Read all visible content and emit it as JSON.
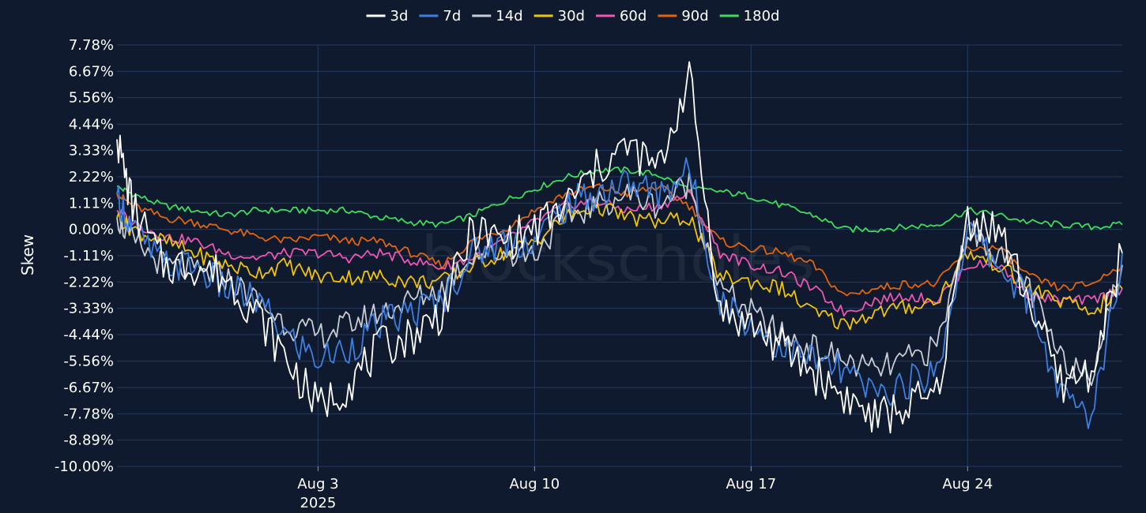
{
  "watermark": "blockscholes",
  "chart_data": {
    "type": "line",
    "title": "",
    "xlabel": "",
    "ylabel": "Skew",
    "ylim": [
      -10.0,
      7.78
    ],
    "yticks": [
      "7.78%",
      "6.67%",
      "5.56%",
      "4.44%",
      "3.33%",
      "2.22%",
      "1.11%",
      "0.00%",
      "-1.11%",
      "-2.22%",
      "-3.33%",
      "-4.44%",
      "-5.56%",
      "-6.67%",
      "-7.78%",
      "-8.89%",
      "-10.00%"
    ],
    "ytick_values": [
      7.78,
      6.67,
      5.56,
      4.44,
      3.33,
      2.22,
      1.11,
      0.0,
      -1.11,
      -2.22,
      -3.33,
      -4.44,
      -5.56,
      -6.67,
      -7.78,
      -8.89,
      -10.0
    ],
    "x_range": [
      "2025-07-27T12:00",
      "2025-08-29T00:00"
    ],
    "xticks": [
      {
        "x": "2025-08-03",
        "label": "Aug 3",
        "sublabel": "2025"
      },
      {
        "x": "2025-08-10",
        "label": "Aug 10",
        "sublabel": ""
      },
      {
        "x": "2025-08-17",
        "label": "Aug 17",
        "sublabel": ""
      },
      {
        "x": "2025-08-24",
        "label": "Aug 24",
        "sublabel": ""
      }
    ],
    "grid": true,
    "legend_position": "top-center",
    "series": [
      {
        "name": "3d",
        "color": "#ffffff",
        "x": [
          "2025-07-27T12:00",
          "2025-07-28T00:00",
          "2025-07-29T00:00",
          "2025-07-30T00:00",
          "2025-07-31T00:00",
          "2025-08-01T00:00",
          "2025-08-02T00:00",
          "2025-08-03T00:00",
          "2025-08-04T00:00",
          "2025-08-05T00:00",
          "2025-08-06T00:00",
          "2025-08-07T00:00",
          "2025-08-08T00:00",
          "2025-08-09T00:00",
          "2025-08-10T00:00",
          "2025-08-11T00:00",
          "2025-08-12T00:00",
          "2025-08-13T00:00",
          "2025-08-14T00:00",
          "2025-08-15T00:00",
          "2025-08-16T00:00",
          "2025-08-17T00:00",
          "2025-08-18T00:00",
          "2025-08-19T00:00",
          "2025-08-20T00:00",
          "2025-08-21T00:00",
          "2025-08-22T00:00",
          "2025-08-23T00:00",
          "2025-08-24T00:00",
          "2025-08-25T00:00",
          "2025-08-26T00:00",
          "2025-08-27T00:00",
          "2025-08-28T00:00",
          "2025-08-29T00:00"
        ],
        "y": [
          3.8,
          1.0,
          -1.5,
          -1.5,
          -2.0,
          -3.5,
          -5.5,
          -7.5,
          -6.5,
          -5.0,
          -4.5,
          -3.5,
          0.0,
          -0.5,
          0.0,
          1.0,
          2.5,
          3.5,
          2.5,
          6.5,
          -3.5,
          -4.0,
          -5.0,
          -6.0,
          -7.0,
          -8.0,
          -7.5,
          -7.0,
          0.5,
          0.0,
          -3.0,
          -6.5,
          -6.0,
          -1.0
        ]
      },
      {
        "name": "7d",
        "color": "#3d7fe0",
        "x": [
          "2025-07-27T12:00",
          "2025-07-28T00:00",
          "2025-07-29T00:00",
          "2025-07-30T00:00",
          "2025-07-31T00:00",
          "2025-08-01T00:00",
          "2025-08-02T00:00",
          "2025-08-03T00:00",
          "2025-08-04T00:00",
          "2025-08-05T00:00",
          "2025-08-06T00:00",
          "2025-08-07T00:00",
          "2025-08-08T00:00",
          "2025-08-09T00:00",
          "2025-08-10T00:00",
          "2025-08-11T00:00",
          "2025-08-12T00:00",
          "2025-08-13T00:00",
          "2025-08-14T00:00",
          "2025-08-15T00:00",
          "2025-08-16T00:00",
          "2025-08-17T00:00",
          "2025-08-18T00:00",
          "2025-08-19T00:00",
          "2025-08-20T00:00",
          "2025-08-21T00:00",
          "2025-08-22T00:00",
          "2025-08-23T00:00",
          "2025-08-24T00:00",
          "2025-08-25T00:00",
          "2025-08-26T00:00",
          "2025-08-27T00:00",
          "2025-08-28T00:00",
          "2025-08-29T00:00"
        ],
        "y": [
          1.5,
          0.0,
          -1.5,
          -1.5,
          -2.5,
          -3.0,
          -4.5,
          -5.5,
          -5.0,
          -4.0,
          -3.5,
          -3.0,
          -1.0,
          -0.5,
          -0.5,
          1.0,
          1.5,
          2.0,
          1.5,
          2.5,
          -3.0,
          -4.0,
          -5.0,
          -5.5,
          -6.0,
          -7.0,
          -6.5,
          -6.0,
          0.0,
          -1.5,
          -3.0,
          -7.0,
          -8.0,
          -1.0
        ]
      },
      {
        "name": "14d",
        "color": "#c8ccd4",
        "x": [
          "2025-07-27T12:00",
          "2025-07-28T00:00",
          "2025-07-29T00:00",
          "2025-07-30T00:00",
          "2025-07-31T00:00",
          "2025-08-01T00:00",
          "2025-08-02T00:00",
          "2025-08-03T00:00",
          "2025-08-04T00:00",
          "2025-08-05T00:00",
          "2025-08-06T00:00",
          "2025-08-07T00:00",
          "2025-08-08T00:00",
          "2025-08-09T00:00",
          "2025-08-10T00:00",
          "2025-08-11T00:00",
          "2025-08-12T00:00",
          "2025-08-13T00:00",
          "2025-08-14T00:00",
          "2025-08-15T00:00",
          "2025-08-16T00:00",
          "2025-08-17T00:00",
          "2025-08-18T00:00",
          "2025-08-19T00:00",
          "2025-08-20T00:00",
          "2025-08-21T00:00",
          "2025-08-22T00:00",
          "2025-08-23T00:00",
          "2025-08-24T00:00",
          "2025-08-25T00:00",
          "2025-08-26T00:00",
          "2025-08-27T00:00",
          "2025-08-28T00:00",
          "2025-08-29T00:00"
        ],
        "y": [
          0.5,
          -0.5,
          -1.5,
          -1.8,
          -2.0,
          -3.0,
          -4.0,
          -4.5,
          -4.0,
          -3.5,
          -3.0,
          -2.5,
          -1.0,
          -1.0,
          -1.0,
          0.5,
          1.0,
          1.5,
          1.0,
          2.0,
          -2.5,
          -3.5,
          -4.5,
          -5.0,
          -5.5,
          -6.0,
          -5.5,
          -5.0,
          0.0,
          -1.0,
          -2.5,
          -5.5,
          -6.0,
          -1.5
        ]
      },
      {
        "name": "30d",
        "color": "#f0c20c",
        "x": [
          "2025-07-27T12:00",
          "2025-07-28T00:00",
          "2025-07-29T00:00",
          "2025-07-30T00:00",
          "2025-07-31T00:00",
          "2025-08-01T00:00",
          "2025-08-02T00:00",
          "2025-08-03T00:00",
          "2025-08-04T00:00",
          "2025-08-05T00:00",
          "2025-08-06T00:00",
          "2025-08-07T00:00",
          "2025-08-08T00:00",
          "2025-08-09T00:00",
          "2025-08-10T00:00",
          "2025-08-11T00:00",
          "2025-08-12T00:00",
          "2025-08-13T00:00",
          "2025-08-14T00:00",
          "2025-08-15T00:00",
          "2025-08-16T00:00",
          "2025-08-17T00:00",
          "2025-08-18T00:00",
          "2025-08-19T00:00",
          "2025-08-20T00:00",
          "2025-08-21T00:00",
          "2025-08-22T00:00",
          "2025-08-23T00:00",
          "2025-08-24T00:00",
          "2025-08-25T00:00",
          "2025-08-26T00:00",
          "2025-08-27T00:00",
          "2025-08-28T00:00",
          "2025-08-29T00:00"
        ],
        "y": [
          0.5,
          0.0,
          -0.5,
          -1.0,
          -1.5,
          -1.8,
          -1.5,
          -2.0,
          -2.0,
          -2.0,
          -2.2,
          -2.2,
          -1.5,
          -1.0,
          -0.5,
          0.5,
          1.0,
          0.5,
          0.3,
          0.5,
          -2.0,
          -2.2,
          -2.5,
          -3.5,
          -4.0,
          -3.5,
          -3.3,
          -3.0,
          -1.0,
          -1.5,
          -2.5,
          -3.0,
          -3.5,
          -2.5
        ]
      },
      {
        "name": "60d",
        "color": "#ee55b0",
        "x": [
          "2025-07-27T12:00",
          "2025-07-28T00:00",
          "2025-07-29T00:00",
          "2025-07-30T00:00",
          "2025-07-31T00:00",
          "2025-08-01T00:00",
          "2025-08-02T00:00",
          "2025-08-03T00:00",
          "2025-08-04T00:00",
          "2025-08-05T00:00",
          "2025-08-06T00:00",
          "2025-08-07T00:00",
          "2025-08-08T00:00",
          "2025-08-09T00:00",
          "2025-08-10T00:00",
          "2025-08-11T00:00",
          "2025-08-12T00:00",
          "2025-08-13T00:00",
          "2025-08-14T00:00",
          "2025-08-15T00:00",
          "2025-08-16T00:00",
          "2025-08-17T00:00",
          "2025-08-18T00:00",
          "2025-08-19T00:00",
          "2025-08-20T00:00",
          "2025-08-21T00:00",
          "2025-08-22T00:00",
          "2025-08-23T00:00",
          "2025-08-24T00:00",
          "2025-08-25T00:00",
          "2025-08-26T00:00",
          "2025-08-27T00:00",
          "2025-08-28T00:00",
          "2025-08-29T00:00"
        ],
        "y": [
          0.8,
          0.3,
          -0.3,
          -0.5,
          -1.0,
          -1.2,
          -1.0,
          -1.0,
          -1.2,
          -1.0,
          -1.3,
          -1.6,
          -1.2,
          -0.5,
          0.3,
          1.0,
          1.2,
          0.8,
          1.0,
          1.5,
          -1.0,
          -1.5,
          -1.8,
          -2.5,
          -3.5,
          -3.0,
          -2.8,
          -3.0,
          -1.5,
          -1.5,
          -2.8,
          -3.0,
          -3.0,
          -2.5
        ]
      },
      {
        "name": "90d",
        "color": "#e0640f",
        "x": [
          "2025-07-27T12:00",
          "2025-07-28T00:00",
          "2025-07-29T00:00",
          "2025-07-30T00:00",
          "2025-07-31T00:00",
          "2025-08-01T00:00",
          "2025-08-02T00:00",
          "2025-08-03T00:00",
          "2025-08-04T00:00",
          "2025-08-05T00:00",
          "2025-08-06T00:00",
          "2025-08-07T00:00",
          "2025-08-08T00:00",
          "2025-08-09T00:00",
          "2025-08-10T00:00",
          "2025-08-11T00:00",
          "2025-08-12T00:00",
          "2025-08-13T00:00",
          "2025-08-14T00:00",
          "2025-08-15T00:00",
          "2025-08-16T00:00",
          "2025-08-17T00:00",
          "2025-08-18T00:00",
          "2025-08-19T00:00",
          "2025-08-20T00:00",
          "2025-08-21T00:00",
          "2025-08-22T00:00",
          "2025-08-23T00:00",
          "2025-08-24T00:00",
          "2025-08-25T00:00",
          "2025-08-26T00:00",
          "2025-08-27T00:00",
          "2025-08-28T00:00",
          "2025-08-29T00:00"
        ],
        "y": [
          1.5,
          1.0,
          0.5,
          0.3,
          0.0,
          -0.3,
          -0.5,
          -0.3,
          -0.5,
          -0.5,
          -1.0,
          -1.5,
          -0.5,
          0.0,
          0.8,
          1.5,
          1.8,
          1.5,
          1.8,
          1.0,
          -0.5,
          -0.8,
          -1.0,
          -1.5,
          -2.8,
          -2.5,
          -2.3,
          -2.3,
          -0.8,
          -0.8,
          -2.0,
          -2.5,
          -2.3,
          -1.5
        ]
      },
      {
        "name": "180d",
        "color": "#3ddc5c",
        "x": [
          "2025-07-27T12:00",
          "2025-07-28T00:00",
          "2025-07-29T00:00",
          "2025-07-30T00:00",
          "2025-07-31T00:00",
          "2025-08-01T00:00",
          "2025-08-02T00:00",
          "2025-08-03T00:00",
          "2025-08-04T00:00",
          "2025-08-05T00:00",
          "2025-08-06T00:00",
          "2025-08-07T00:00",
          "2025-08-08T00:00",
          "2025-08-09T00:00",
          "2025-08-10T00:00",
          "2025-08-11T00:00",
          "2025-08-12T00:00",
          "2025-08-13T00:00",
          "2025-08-14T00:00",
          "2025-08-15T00:00",
          "2025-08-16T00:00",
          "2025-08-17T00:00",
          "2025-08-18T00:00",
          "2025-08-19T00:00",
          "2025-08-20T00:00",
          "2025-08-21T00:00",
          "2025-08-22T00:00",
          "2025-08-23T00:00",
          "2025-08-24T00:00",
          "2025-08-25T00:00",
          "2025-08-26T00:00",
          "2025-08-27T00:00",
          "2025-08-28T00:00",
          "2025-08-29T00:00"
        ],
        "y": [
          1.8,
          1.5,
          1.0,
          0.8,
          0.6,
          0.8,
          0.8,
          0.8,
          0.8,
          0.5,
          0.3,
          0.2,
          0.6,
          1.2,
          1.7,
          2.2,
          2.5,
          2.5,
          2.3,
          1.7,
          1.6,
          1.4,
          1.0,
          0.6,
          0.0,
          0.0,
          0.1,
          0.2,
          0.8,
          0.6,
          0.3,
          0.2,
          0.1,
          0.2
        ]
      }
    ]
  }
}
